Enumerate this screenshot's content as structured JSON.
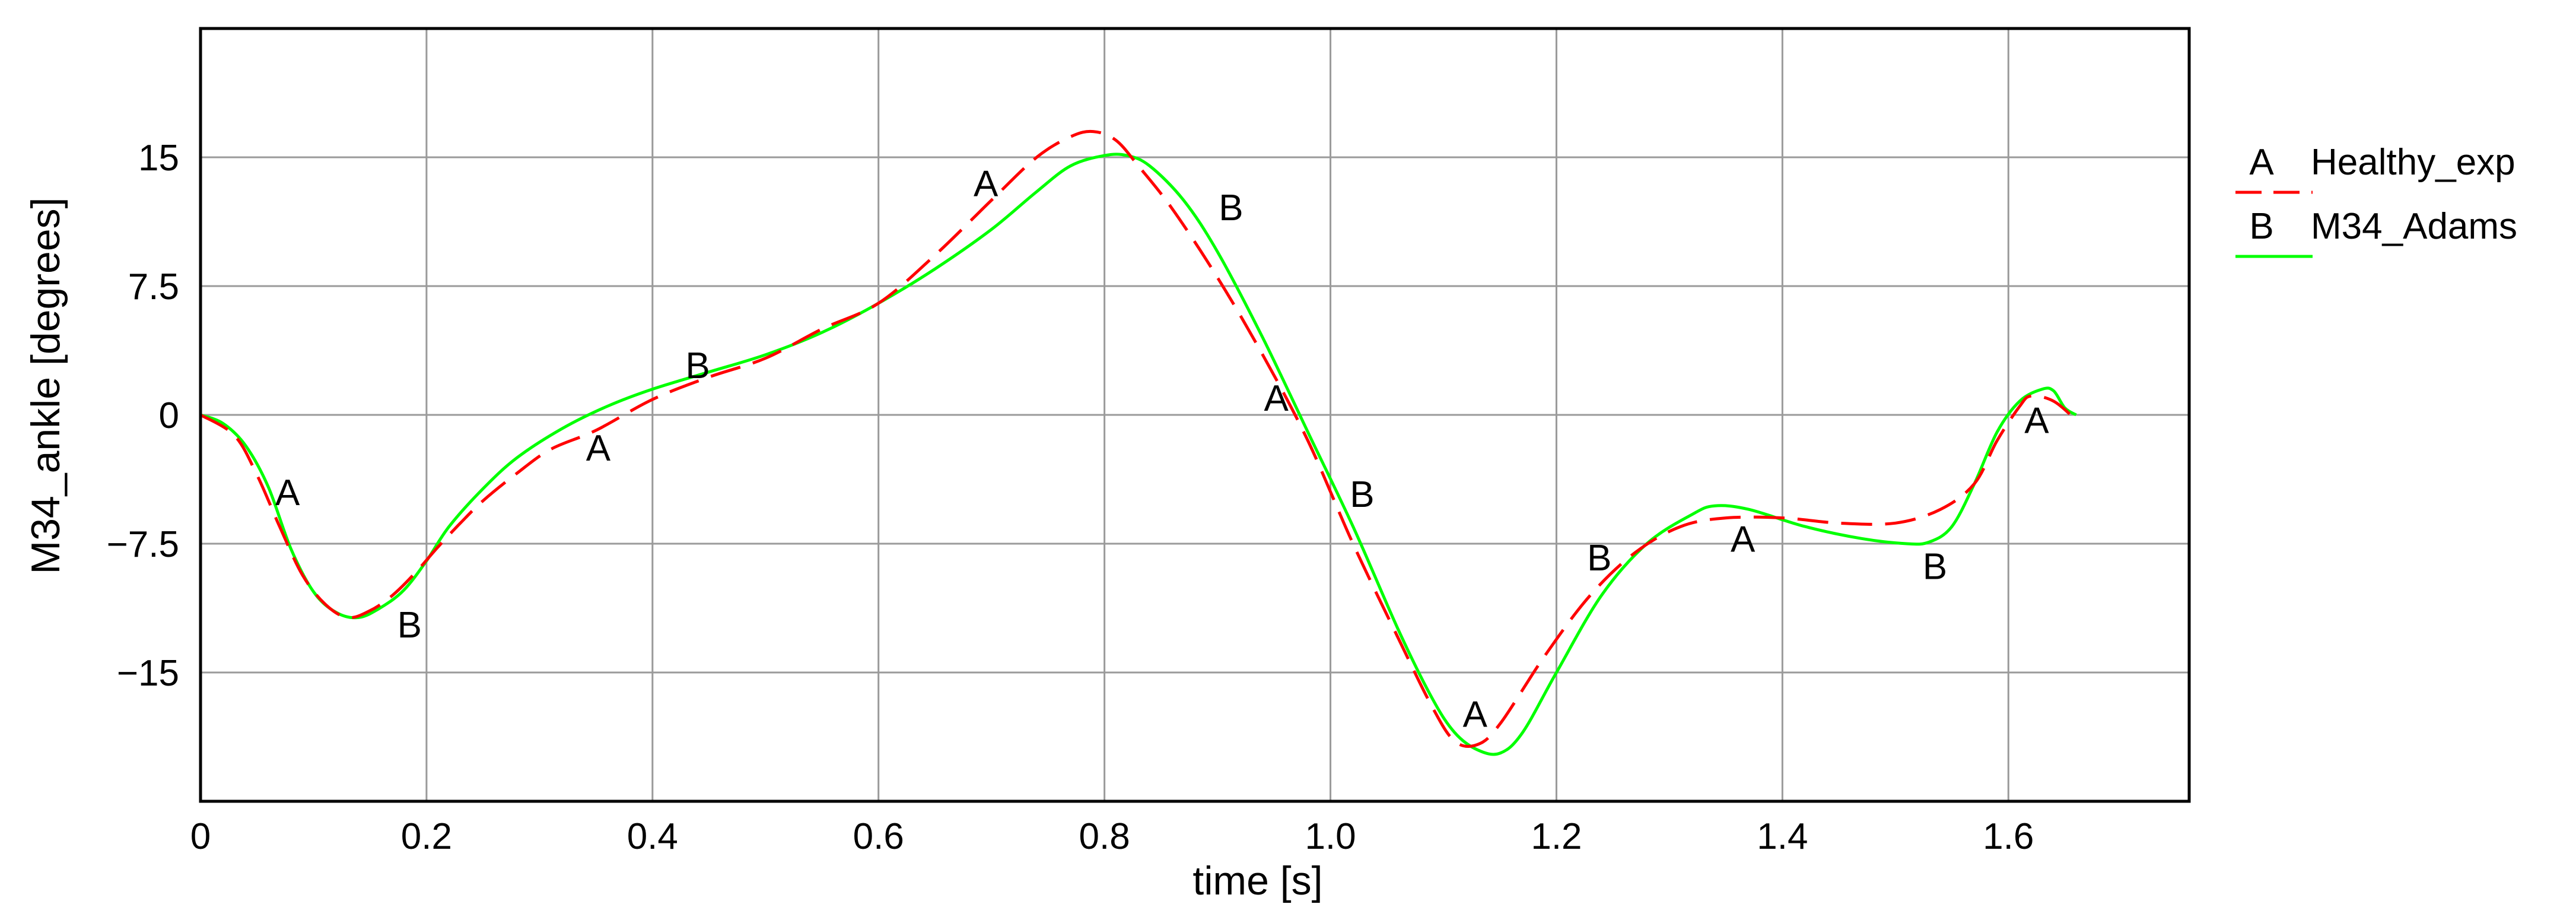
{
  "chart_data": {
    "type": "line",
    "xlabel": "time [s]",
    "ylabel": "M34_ankle [degrees]",
    "xlim": [
      0,
      1.76
    ],
    "ylim": [
      -22.5,
      22.5
    ],
    "xticks": [
      0,
      0.2,
      0.4,
      0.6,
      0.8,
      1.0,
      1.2,
      1.4,
      1.6
    ],
    "xtick_labels": [
      "0",
      "0.2",
      "0.4",
      "0.6",
      "0.8",
      "1.0",
      "1.2",
      "1.4",
      "1.6"
    ],
    "yticks": [
      15,
      7.5,
      0,
      -7.5,
      -15
    ],
    "ytick_labels": [
      "15",
      "7.5",
      "0",
      "−7.5",
      "−15"
    ],
    "grid": true,
    "legend_position": "right",
    "series": [
      {
        "name": "Healthy_exp",
        "marker": "A",
        "color": "#ff0000",
        "dash": "dashed",
        "x": [
          0,
          0.03,
          0.05,
          0.07,
          0.09,
          0.11,
          0.13,
          0.15,
          0.17,
          0.19,
          0.21,
          0.23,
          0.25,
          0.28,
          0.31,
          0.35,
          0.4,
          0.45,
          0.5,
          0.55,
          0.6,
          0.65,
          0.7,
          0.74,
          0.77,
          0.79,
          0.81,
          0.83,
          0.86,
          0.9,
          0.94,
          0.98,
          1.02,
          1.06,
          1.09,
          1.11,
          1.13,
          1.15,
          1.19,
          1.23,
          1.27,
          1.31,
          1.35,
          1.4,
          1.45,
          1.5,
          1.54,
          1.57,
          1.59,
          1.61,
          1.62,
          1.64,
          1.66
        ],
        "y": [
          0,
          -1.2,
          -3.5,
          -6.5,
          -9.3,
          -11.0,
          -11.8,
          -11.4,
          -10.5,
          -9.2,
          -7.7,
          -6.3,
          -5.0,
          -3.4,
          -2.0,
          -0.9,
          0.9,
          2.2,
          3.3,
          5.0,
          6.5,
          9.3,
          12.5,
          15.0,
          16.2,
          16.5,
          16.0,
          14.5,
          12.0,
          8.0,
          3.5,
          -1.5,
          -7.5,
          -13.0,
          -17.0,
          -19.0,
          -19.2,
          -18.0,
          -14.0,
          -10.5,
          -8.0,
          -6.5,
          -6.0,
          -6.0,
          -6.3,
          -6.3,
          -5.5,
          -4.0,
          -1.5,
          0.5,
          1.1,
          0.8,
          -0.3
        ]
      },
      {
        "name": "M34_Adams",
        "marker": "B",
        "color": "#00ff00",
        "dash": "solid",
        "x": [
          0,
          0.02,
          0.04,
          0.06,
          0.08,
          0.1,
          0.12,
          0.14,
          0.16,
          0.18,
          0.2,
          0.22,
          0.25,
          0.28,
          0.32,
          0.36,
          0.4,
          0.45,
          0.5,
          0.55,
          0.6,
          0.65,
          0.7,
          0.74,
          0.77,
          0.8,
          0.82,
          0.84,
          0.87,
          0.9,
          0.94,
          0.98,
          1.02,
          1.06,
          1.09,
          1.11,
          1.13,
          1.15,
          1.17,
          1.2,
          1.24,
          1.28,
          1.32,
          1.34,
          1.37,
          1.42,
          1.47,
          1.51,
          1.53,
          1.55,
          1.57,
          1.59,
          1.61,
          1.63,
          1.64,
          1.65,
          1.66
        ],
        "y": [
          0,
          -0.5,
          -1.8,
          -4.2,
          -7.8,
          -10.3,
          -11.5,
          -11.8,
          -11.2,
          -10.2,
          -8.5,
          -6.5,
          -4.3,
          -2.5,
          -0.8,
          0.5,
          1.5,
          2.5,
          3.5,
          4.8,
          6.5,
          8.5,
          10.8,
          13.0,
          14.5,
          15.1,
          15.1,
          14.5,
          12.5,
          9.5,
          4.5,
          -1.0,
          -6.5,
          -12.5,
          -16.5,
          -18.5,
          -19.5,
          -19.7,
          -18.5,
          -15.0,
          -10.5,
          -7.5,
          -5.8,
          -5.3,
          -5.5,
          -6.5,
          -7.2,
          -7.5,
          -7.4,
          -6.5,
          -4.0,
          -1.0,
          0.8,
          1.5,
          1.4,
          0.4,
          0.0
        ]
      }
    ],
    "markers": [
      {
        "label": "A",
        "series": 0,
        "x": 0.077,
        "y": -4.5
      },
      {
        "label": "B",
        "series": 1,
        "x": 0.185,
        "y": -12.2
      },
      {
        "label": "A",
        "series": 0,
        "x": 0.352,
        "y": -1.9
      },
      {
        "label": "B",
        "series": 1,
        "x": 0.44,
        "y": 2.9
      },
      {
        "label": "A",
        "series": 0,
        "x": 0.695,
        "y": 13.5
      },
      {
        "label": "B",
        "series": 1,
        "x": 0.912,
        "y": 12.1
      },
      {
        "label": "A",
        "series": 0,
        "x": 0.952,
        "y": 1.0
      },
      {
        "label": "B",
        "series": 1,
        "x": 1.028,
        "y": -4.6
      },
      {
        "label": "A",
        "series": 0,
        "x": 1.128,
        "y": -17.4
      },
      {
        "label": "B",
        "series": 1,
        "x": 1.238,
        "y": -8.3
      },
      {
        "label": "A",
        "series": 0,
        "x": 1.365,
        "y": -7.2
      },
      {
        "label": "B",
        "series": 1,
        "x": 1.535,
        "y": -8.8
      },
      {
        "label": "A",
        "series": 0,
        "x": 1.625,
        "y": -0.3
      }
    ]
  }
}
